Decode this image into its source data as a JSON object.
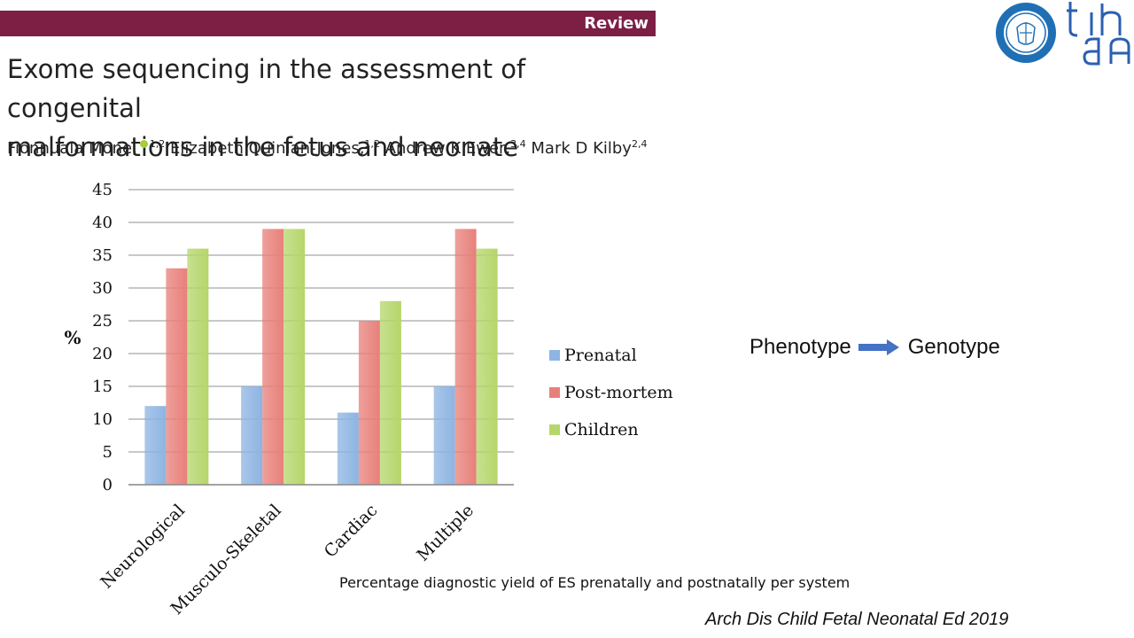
{
  "header": {
    "section_label": "Review",
    "paper_title_line1": "Exome sequencing in the assessment of congenital",
    "paper_title_line2": "malformations in the fetus and neonate",
    "authors": [
      {
        "name": "Fionnuala Mone,",
        "affil": "1,2",
        "orcid": true
      },
      {
        "name": "Elizabeth Quinlan-Jones,",
        "affil": "1,2",
        "orcid": false
      },
      {
        "name": "Andrew K Ewer,",
        "affil": "3,4",
        "orcid": false
      },
      {
        "name": "Mark D Kilby",
        "affil": "2,4",
        "orcid": false
      }
    ]
  },
  "logos": {
    "seal_icon": "university-seal-logo",
    "mark_icon": "tgha-logo"
  },
  "chart_data": {
    "type": "bar",
    "categories": [
      "Neurological",
      "Musculo-Skeletal",
      "Cardiac",
      "Multiple"
    ],
    "series": [
      {
        "name": "Prenatal",
        "values": [
          12,
          15,
          11,
          15
        ],
        "color": "#8db4e2"
      },
      {
        "name": "Post-mortem",
        "values": [
          33,
          39,
          25,
          39
        ],
        "color": "#e8807a"
      },
      {
        "name": "Children",
        "values": [
          36,
          39,
          28,
          36
        ],
        "color": "#b5d66a"
      }
    ],
    "ylabel": "%",
    "xlabel": "",
    "ylim": [
      0,
      45
    ],
    "yticks": [
      0,
      5,
      10,
      15,
      20,
      25,
      30,
      35,
      40,
      45
    ],
    "grid": true,
    "legend": "right"
  },
  "flow": {
    "from": "Phenotype",
    "to": "Genotype",
    "arrow_color": "#4472c4"
  },
  "caption": "Percentage diagnostic yield of ES prenatally and postnatally per system",
  "citation": "Arch Dis Child Fetal Neonatal  Ed 2019"
}
